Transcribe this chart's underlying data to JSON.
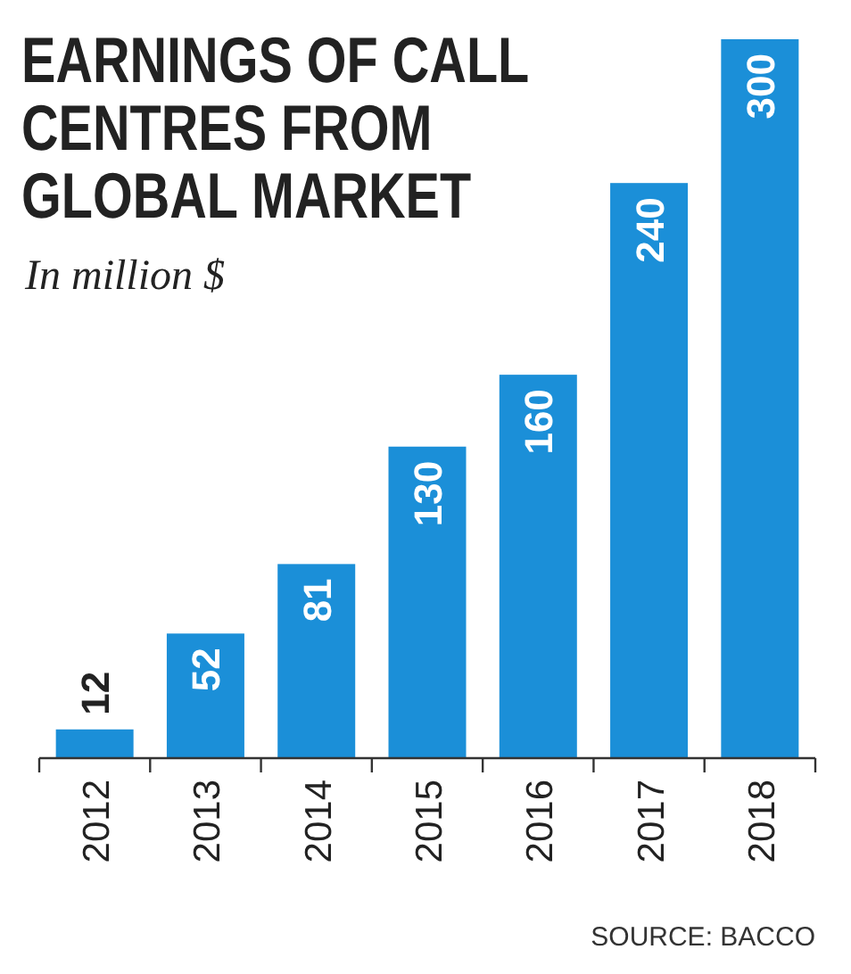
{
  "chart_data": {
    "type": "bar",
    "title": "EARNINGS OF CALL\nCENTRES FROM\nGLOBAL MARKET",
    "subtitle": "In million $",
    "categories": [
      "2012",
      "2013",
      "2014",
      "2015",
      "2016",
      "2017",
      "2018"
    ],
    "values": [
      12,
      52,
      81,
      130,
      160,
      240,
      300
    ],
    "color": "#1b8fd8",
    "data_labels": true,
    "annotations": [
      "SOURCE: BACCO"
    ]
  }
}
